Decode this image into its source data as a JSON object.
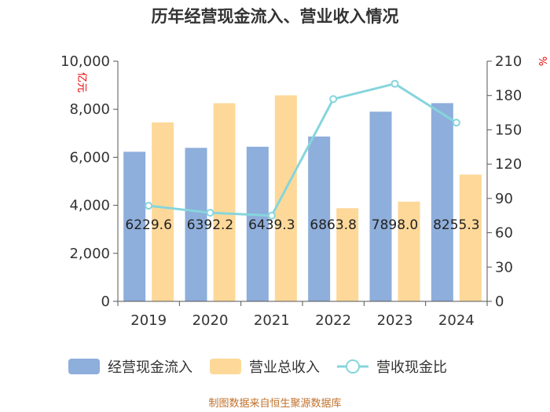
{
  "chart_data": {
    "type": "bar",
    "title": "历年经营现金流入、营业收入情况",
    "categories": [
      "2019",
      "2020",
      "2021",
      "2022",
      "2023",
      "2024"
    ],
    "series": [
      {
        "name": "经营现金流入",
        "type": "bar",
        "axis": "left",
        "color": "#8eaedb",
        "values": [
          6229.6,
          6392.2,
          6439.3,
          6863.8,
          7898.0,
          8255.3
        ],
        "labels": [
          "6229.6",
          "6392.2",
          "6439.3",
          "6863.8",
          "7898.0",
          "8255.3"
        ]
      },
      {
        "name": "营业总收入",
        "type": "bar",
        "axis": "left",
        "color": "#fdd899",
        "values": [
          7450,
          8250,
          8580,
          3880,
          4150,
          5280
        ]
      },
      {
        "name": "营收现金比",
        "type": "line",
        "axis": "right",
        "color": "#86d5dc",
        "values": [
          83.6,
          77.5,
          75.0,
          176.9,
          190.3,
          156.3
        ]
      }
    ],
    "y_left": {
      "label": "亿元",
      "min": 0,
      "max": 10000,
      "ticks": [
        0,
        2000,
        4000,
        6000,
        8000,
        10000
      ],
      "tick_labels": [
        "0",
        "2,000",
        "4,000",
        "6,000",
        "8,000",
        "10,000"
      ]
    },
    "y_right": {
      "label": "%",
      "min": 0,
      "max": 210,
      "ticks": [
        0,
        30,
        60,
        90,
        120,
        150,
        180,
        210
      ],
      "tick_labels": [
        "0",
        "30",
        "60",
        "90",
        "120",
        "150",
        "180",
        "210"
      ]
    },
    "legend": {
      "position": "bottom"
    },
    "grid": false
  },
  "source": "制图数据来自恒生聚源数据库"
}
